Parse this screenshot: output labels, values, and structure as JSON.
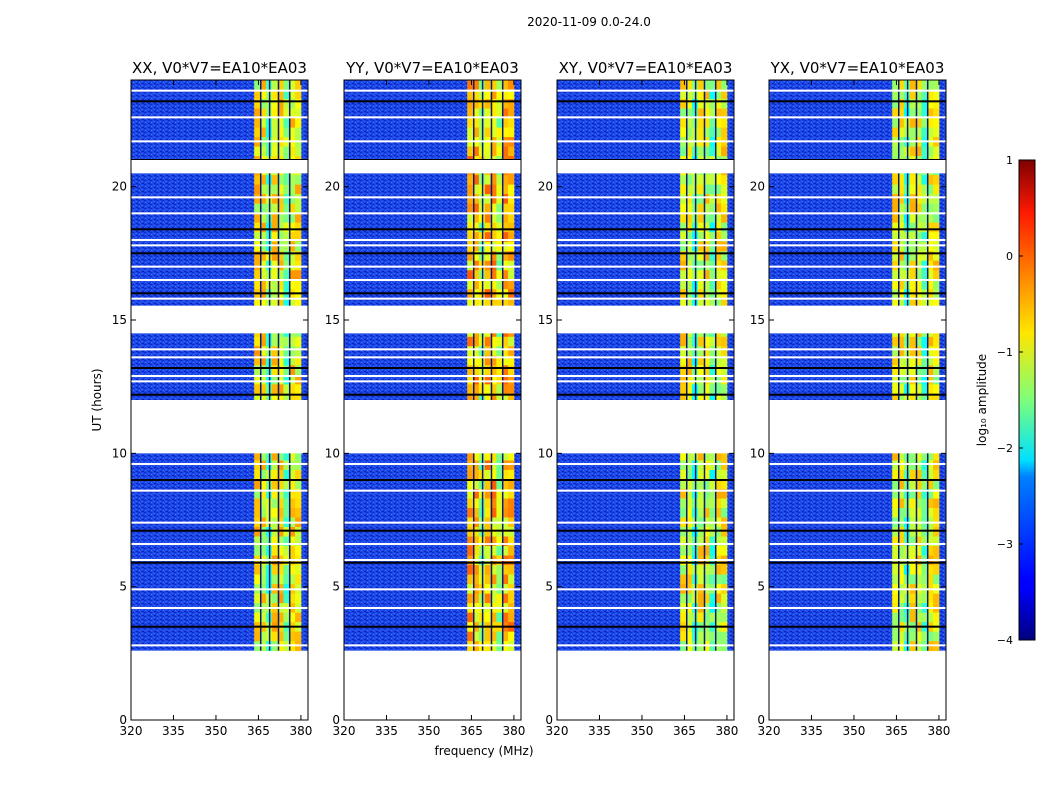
{
  "figure": {
    "suptitle": "2020-11-09 0.0-24.0",
    "ylabel": "UT (hours)",
    "xlabel": "frequency (MHz)"
  },
  "chart_data": {
    "type": "heatmap",
    "title": "2020-11-09 0.0-24.0",
    "xlabel": "frequency (MHz)",
    "ylabel": "UT (hours)",
    "xlim": [
      320,
      382.5
    ],
    "ylim": [
      0,
      24
    ],
    "xticks": [
      320,
      335,
      350,
      365,
      380
    ],
    "yticks": [
      0,
      5,
      10,
      15,
      20
    ],
    "data_extent_hours": [
      2.6,
      24.0
    ],
    "bright_band_mhz": [
      363.5,
      380.0
    ],
    "gap_rows_hours": [
      [
        11.4,
        12.0
      ],
      [
        10.0,
        11.4
      ],
      [
        14.5,
        15.5
      ],
      [
        20.5,
        21.0
      ]
    ],
    "panels": [
      {
        "title": "XX, V0*V7=EA10*EA03",
        "band_level": 0.62
      },
      {
        "title": "YY, V0*V7=EA10*EA03",
        "band_level": 0.68
      },
      {
        "title": "XY, V0*V7=EA10*EA03",
        "band_level": 0.6
      },
      {
        "title": "YX, V0*V7=EA10*EA03",
        "band_level": 0.6
      }
    ],
    "colorbar": {
      "label": "log₁₀ amplitude",
      "range": [
        -4,
        1
      ],
      "ticks": [
        1,
        0,
        -1,
        -2,
        -3,
        -4
      ],
      "tick_labels": [
        "1",
        "0",
        "−1",
        "−2",
        "−3",
        "−4"
      ],
      "colormap": "jet"
    }
  }
}
